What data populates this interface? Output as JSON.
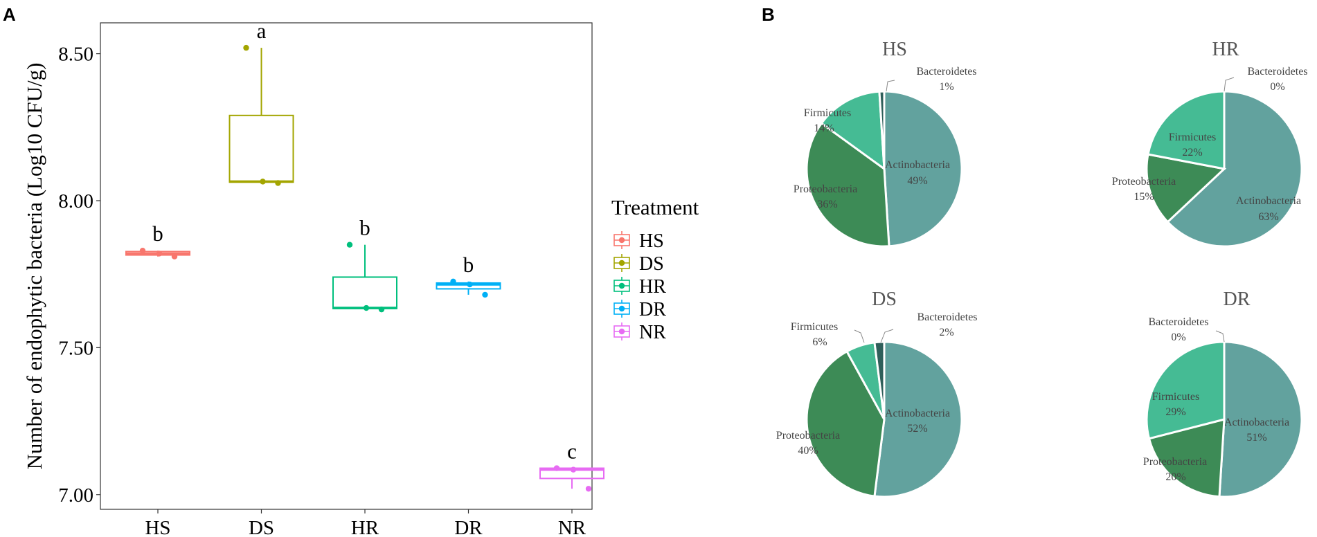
{
  "panels": {
    "a_label": "A",
    "b_label": "B"
  },
  "chart_data": [
    {
      "type": "box",
      "panel": "A",
      "ylabel": "Number of endophytic bacteria (Log10 CFU/g)",
      "xlabel": "",
      "ylim": [
        6.95,
        8.605
      ],
      "yticks": [
        7.0,
        7.5,
        8.0,
        8.5
      ],
      "ytick_labels": [
        "7.00",
        "7.50",
        "8.00",
        "8.50"
      ],
      "categories": [
        "HS",
        "DS",
        "HR",
        "DR",
        "NR"
      ],
      "legend_title": "Treatment",
      "legend_position": "right",
      "colors": {
        "HS": "#F8766D",
        "DS": "#A3A500",
        "HR": "#00BF7D",
        "DR": "#00B0F6",
        "NR": "#E76BF3"
      },
      "series": [
        {
          "name": "HS",
          "min": 7.81,
          "q1": 7.815,
          "median": 7.82,
          "q3": 7.827,
          "max": 7.83,
          "points": [
            7.83,
            7.82,
            7.81
          ],
          "letter": "b"
        },
        {
          "name": "DS",
          "min": 8.06,
          "q1": 8.063,
          "median": 8.065,
          "q3": 8.29,
          "max": 8.52,
          "points": [
            8.52,
            8.065,
            8.06
          ],
          "letter": "a"
        },
        {
          "name": "HR",
          "min": 7.63,
          "q1": 7.633,
          "median": 7.635,
          "q3": 7.74,
          "max": 7.85,
          "points": [
            7.85,
            7.635,
            7.63
          ],
          "letter": "b"
        },
        {
          "name": "DR",
          "min": 7.68,
          "q1": 7.7,
          "median": 7.715,
          "q3": 7.72,
          "max": 7.725,
          "points": [
            7.725,
            7.715,
            7.68
          ],
          "letter": "b"
        },
        {
          "name": "NR",
          "min": 7.02,
          "q1": 7.055,
          "median": 7.085,
          "q3": 7.09,
          "max": 7.09,
          "points": [
            7.09,
            7.085,
            7.02
          ],
          "letter": "c"
        }
      ]
    },
    {
      "type": "pie",
      "panel": "B",
      "title": "HS",
      "slices": [
        {
          "name": "Actinobacteria",
          "value": 49,
          "label": "49%",
          "color": "#62A29E"
        },
        {
          "name": "Proteobacteria",
          "value": 36,
          "label": "36%",
          "color": "#3D8B56"
        },
        {
          "name": "Firmicutes",
          "value": 14,
          "label": "14%",
          "color": "#45BB94"
        },
        {
          "name": "Bacteroidetes",
          "value": 1,
          "label": "1%",
          "color": "#2F5F5A"
        }
      ]
    },
    {
      "type": "pie",
      "panel": "B",
      "title": "HR",
      "slices": [
        {
          "name": "Actinobacteria",
          "value": 63,
          "label": "63%",
          "color": "#62A29E"
        },
        {
          "name": "Proteobacteria",
          "value": 15,
          "label": "15%",
          "color": "#3D8B56"
        },
        {
          "name": "Firmicutes",
          "value": 22,
          "label": "22%",
          "color": "#45BB94"
        },
        {
          "name": "Bacteroidetes",
          "value": 0,
          "label": "0%",
          "color": "#2F5F5A"
        }
      ]
    },
    {
      "type": "pie",
      "panel": "B",
      "title": "DS",
      "slices": [
        {
          "name": "Actinobacteria",
          "value": 52,
          "label": "52%",
          "color": "#62A29E"
        },
        {
          "name": "Proteobacteria",
          "value": 40,
          "label": "40%",
          "color": "#3D8B56"
        },
        {
          "name": "Firmicutes",
          "value": 6,
          "label": "6%",
          "color": "#45BB94"
        },
        {
          "name": "Bacteroidetes",
          "value": 2,
          "label": "2%",
          "color": "#2F5F5A"
        }
      ]
    },
    {
      "type": "pie",
      "panel": "B",
      "title": "DR",
      "slices": [
        {
          "name": "Actinobacteria",
          "value": 51,
          "label": "51%",
          "color": "#62A29E"
        },
        {
          "name": "Proteobacteria",
          "value": 20,
          "label": "20%",
          "color": "#3D8B56"
        },
        {
          "name": "Firmicutes",
          "value": 29,
          "label": "29%",
          "color": "#45BB94"
        },
        {
          "name": "Bacteroidetes",
          "value": 0,
          "label": "0%",
          "color": "#2F5F5A"
        }
      ]
    }
  ]
}
